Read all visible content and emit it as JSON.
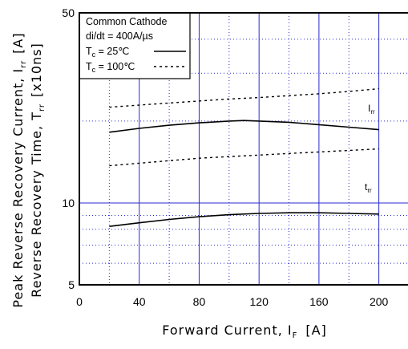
{
  "chart_data": {
    "type": "line",
    "xlabel": "Forward Current, I",
    "xlabel_sub": "F",
    "xlabel_unit": "[A]",
    "ylabel_line1": {
      "prefix": "Peak Reverse Recovery Current, I",
      "sub": "rr",
      "suffix": "[A]"
    },
    "ylabel_line2": {
      "prefix": "Reverse Recovery Time, T",
      "sub": "rr",
      "suffix": "[x10ns]"
    },
    "xlim": [
      0,
      220
    ],
    "ylim": [
      5,
      50
    ],
    "y_scale": "log",
    "x_ticks": [
      0,
      40,
      80,
      120,
      160,
      200
    ],
    "x_tick_labels": [
      "0",
      "40",
      "80",
      "120",
      "160",
      "200"
    ],
    "y_ticks_labeled": [
      5,
      10,
      50
    ],
    "y_tick_labels": [
      "5",
      "10",
      "50"
    ],
    "y_minor_grid": [
      6,
      7,
      8,
      9,
      20,
      30,
      40
    ],
    "grid": true,
    "legend": {
      "placement": "top-left",
      "title": "Common Cathode",
      "condition": "di/dt = 400A/µs",
      "entries": [
        {
          "prefix": "T",
          "sub": "c",
          "text": " =   25℃",
          "style": "solid"
        },
        {
          "prefix": "T",
          "sub": "c",
          "text": " = 100℃",
          "style": "dashed"
        }
      ]
    },
    "series": [
      {
        "name": "Irr",
        "label_prefix": "I",
        "label_sub": "rr",
        "condition": "25C",
        "style": "solid",
        "x": [
          20,
          40,
          60,
          80,
          100,
          110,
          120,
          140,
          160,
          180,
          200
        ],
        "y": [
          18.2,
          18.8,
          19.3,
          19.7,
          20.0,
          20.1,
          20.0,
          19.8,
          19.4,
          19.0,
          18.6
        ]
      },
      {
        "name": "Irr",
        "condition": "100C",
        "style": "dashed",
        "x": [
          20,
          40,
          60,
          80,
          100,
          120,
          140,
          160,
          180,
          200
        ],
        "y": [
          22.5,
          22.9,
          23.3,
          23.7,
          24.1,
          24.4,
          24.8,
          25.2,
          25.7,
          26.3
        ]
      },
      {
        "name": "trr",
        "label_prefix": "t",
        "label_sub": "rr",
        "condition": "25C",
        "style": "solid",
        "x": [
          20,
          40,
          60,
          80,
          100,
          120,
          140,
          160,
          180,
          200
        ],
        "y": [
          8.2,
          8.45,
          8.7,
          8.9,
          9.05,
          9.15,
          9.2,
          9.2,
          9.15,
          9.1
        ]
      },
      {
        "name": "trr",
        "condition": "100C",
        "style": "dashed",
        "x": [
          20,
          40,
          60,
          80,
          100,
          120,
          140,
          160,
          180,
          200
        ],
        "y": [
          13.7,
          14.0,
          14.3,
          14.6,
          14.8,
          15.0,
          15.2,
          15.4,
          15.6,
          15.8
        ]
      }
    ]
  }
}
